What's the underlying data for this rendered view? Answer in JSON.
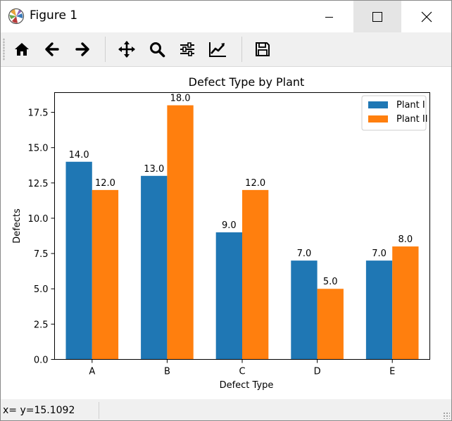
{
  "window": {
    "title": "Figure 1"
  },
  "toolbar": {
    "buttons": [
      {
        "name": "home",
        "icon": "home-icon"
      },
      {
        "name": "back",
        "icon": "arrow-left-icon"
      },
      {
        "name": "forward",
        "icon": "arrow-right-icon"
      },
      {
        "name": "pan",
        "icon": "move-icon"
      },
      {
        "name": "zoom",
        "icon": "magnifier-icon"
      },
      {
        "name": "configure",
        "icon": "sliders-icon"
      },
      {
        "name": "edit-axes",
        "icon": "line-chart-icon"
      },
      {
        "name": "save",
        "icon": "floppy-disk-icon"
      }
    ]
  },
  "status": {
    "text": "x= y=15.1092"
  },
  "colors": {
    "series1": "#1f77b4",
    "series2": "#ff7f0e"
  },
  "chart_data": {
    "type": "bar",
    "title": "Defect Type by Plant",
    "xlabel": "Defect Type",
    "ylabel": "Defects",
    "categories": [
      "A",
      "B",
      "C",
      "D",
      "E"
    ],
    "series": [
      {
        "name": "Plant I",
        "values": [
          14.0,
          13.0,
          9.0,
          7.0,
          7.0
        ]
      },
      {
        "name": "Plant II",
        "values": [
          12.0,
          18.0,
          12.0,
          5.0,
          8.0
        ]
      }
    ],
    "value_labels": [
      [
        "14.0",
        "13.0",
        "9.0",
        "7.0",
        "7.0"
      ],
      [
        "12.0",
        "18.0",
        "12.0",
        "5.0",
        "8.0"
      ]
    ],
    "ylim": [
      0,
      18.9
    ],
    "yticks": [
      0.0,
      2.5,
      5.0,
      7.5,
      10.0,
      12.5,
      15.0,
      17.5
    ],
    "ytick_labels": [
      "0.0",
      "2.5",
      "5.0",
      "7.5",
      "10.0",
      "12.5",
      "15.0",
      "17.5"
    ],
    "grid": false,
    "legend": "top-right"
  }
}
